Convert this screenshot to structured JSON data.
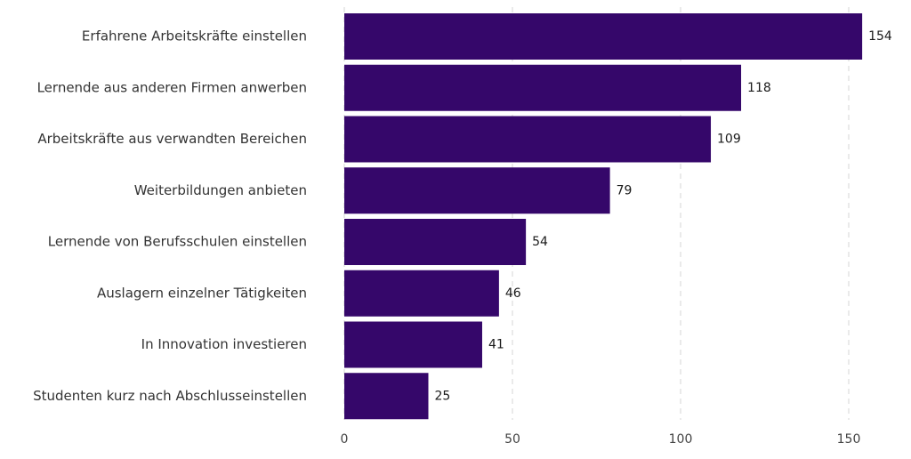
{
  "chart_data": {
    "type": "bar",
    "orientation": "horizontal",
    "title": "",
    "xlabel": "",
    "ylabel": "",
    "categories": [
      "Erfahrene Arbeitskräfte einstellen",
      "Lernende aus anderen Firmen anwerben",
      "Arbeitskräfte aus verwandten Bereichen",
      "Weiterbildungen anbieten",
      "Lernende von Berufsschulen einstellen",
      "Auslagern einzelner Tätigkeiten",
      "In Innovation investieren",
      "Studenten kurz nach Abschlusseinstellen"
    ],
    "values": [
      154,
      118,
      109,
      79,
      54,
      46,
      41,
      25
    ],
    "x_ticks": [
      0,
      50,
      100,
      150
    ],
    "xlim": [
      0,
      154
    ],
    "grid": "vertical-dashed",
    "legend": "none",
    "bar_color": "#35076a"
  }
}
